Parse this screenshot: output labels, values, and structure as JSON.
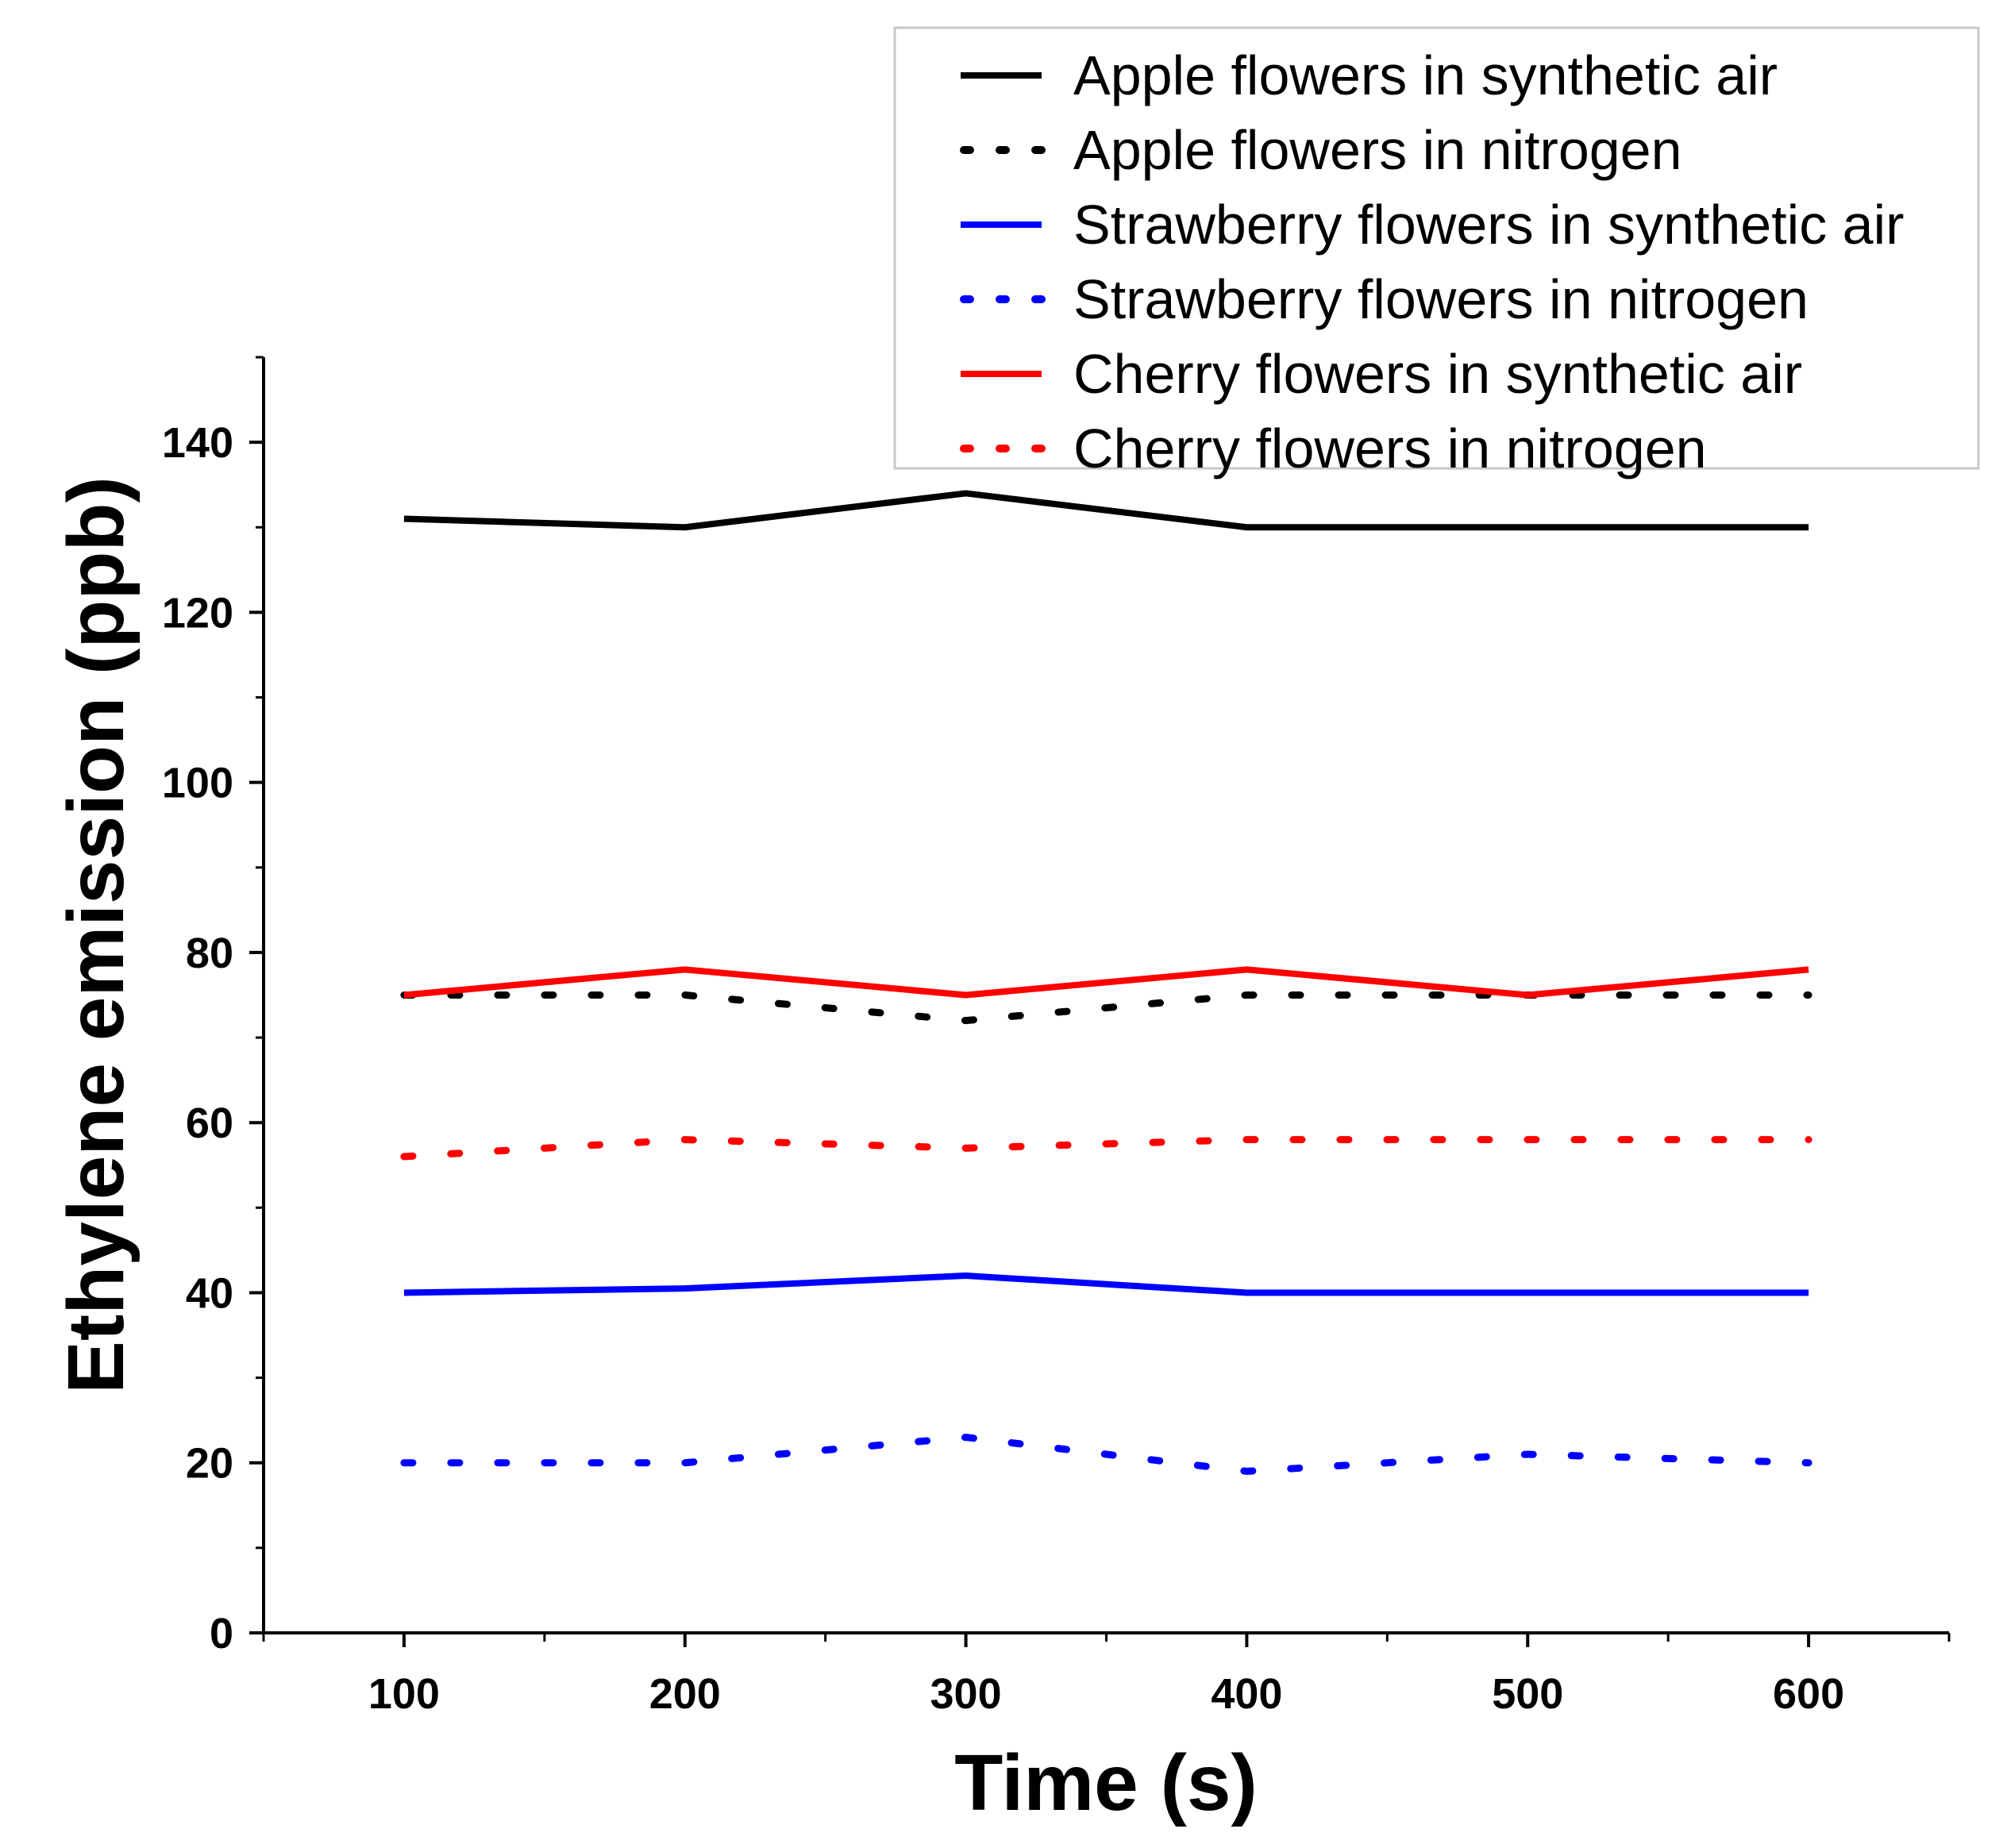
{
  "chart_data": {
    "type": "line",
    "title": "",
    "xlabel": "Time (s)",
    "ylabel": "Ethylene emission (ppb)",
    "xlim": [
      50,
      650
    ],
    "ylim": [
      0,
      150
    ],
    "xticks": [
      100,
      200,
      300,
      400,
      500,
      600
    ],
    "yticks": [
      0,
      20,
      40,
      60,
      80,
      100,
      120,
      140
    ],
    "grid": false,
    "legend_position": "top-right",
    "x": [
      100,
      200,
      300,
      400,
      500,
      600
    ],
    "series": [
      {
        "name": "Apple flowers in synthetic air",
        "color": "#000000",
        "style": "solid",
        "values": [
          131,
          130,
          134,
          130,
          130,
          130
        ]
      },
      {
        "name": "Apple flowers in nitrogen",
        "color": "#000000",
        "style": "dotted",
        "values": [
          75,
          75,
          72,
          75,
          75,
          75
        ]
      },
      {
        "name": "Strawberry flowers in synthetic air",
        "color": "#0000ff",
        "style": "solid",
        "values": [
          40,
          40.5,
          42,
          40,
          40,
          40
        ]
      },
      {
        "name": "Strawberry flowers in nitrogen",
        "color": "#0000ff",
        "style": "dotted",
        "values": [
          20,
          20,
          23,
          19,
          21,
          20
        ]
      },
      {
        "name": "Cherry flowers in synthetic air",
        "color": "#ff0000",
        "style": "solid",
        "values": [
          75,
          78,
          75,
          78,
          75,
          78
        ]
      },
      {
        "name": "Cherry flowers in nitrogen",
        "color": "#ff0000",
        "style": "dotted",
        "values": [
          56,
          58,
          57,
          58,
          58,
          58
        ]
      }
    ]
  }
}
